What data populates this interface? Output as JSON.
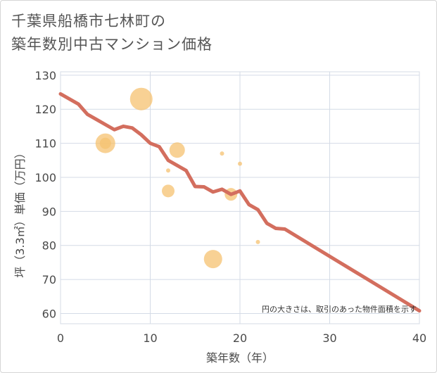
{
  "chart_data": {
    "type": "scatter",
    "title_line1": "千葉県船橋市七林町の",
    "title_line2": "築年数別中古マンション価格",
    "xlabel": "築年数（年）",
    "ylabel": "坪（3.3㎡）単価（万円）",
    "xlim": [
      0,
      40
    ],
    "ylim": [
      57,
      131
    ],
    "xticks": [
      0,
      10,
      20,
      30,
      40
    ],
    "yticks": [
      60,
      70,
      80,
      90,
      100,
      110,
      120,
      130
    ],
    "grid": true,
    "note": "円の大きさは、取引のあった物件面積を示す",
    "colors": {
      "bubble": "#f5c170",
      "line": "#d36e5e",
      "grid": "#d4dbe6"
    },
    "bubbles": [
      {
        "x": 9,
        "y": 123,
        "size": 16
      },
      {
        "x": 5,
        "y": 110,
        "size": 14
      },
      {
        "x": 5,
        "y": 110,
        "size": 8
      },
      {
        "x": 13,
        "y": 108,
        "size": 11
      },
      {
        "x": 18,
        "y": 107,
        "size": 3
      },
      {
        "x": 20,
        "y": 104,
        "size": 3
      },
      {
        "x": 12,
        "y": 102,
        "size": 3
      },
      {
        "x": 12,
        "y": 96,
        "size": 9
      },
      {
        "x": 19,
        "y": 95,
        "size": 9
      },
      {
        "x": 22,
        "y": 81,
        "size": 3
      },
      {
        "x": 17,
        "y": 76,
        "size": 13
      }
    ],
    "line": {
      "x": [
        0,
        2,
        3,
        4,
        5,
        6,
        7,
        8,
        9,
        10,
        11,
        12,
        13,
        14,
        15,
        16,
        17,
        18,
        19,
        20,
        21,
        22,
        23,
        24,
        25,
        26,
        27,
        28,
        29,
        30,
        31,
        32,
        33,
        34,
        35,
        36,
        37,
        38,
        39,
        40
      ],
      "y": [
        124.5,
        121.5,
        118.5,
        117,
        115.5,
        114,
        115,
        114.5,
        112.5,
        110,
        109,
        105,
        103.5,
        102,
        97.3,
        97.2,
        95.7,
        96.5,
        95,
        96,
        92,
        90.5,
        86.5,
        85,
        84.8,
        83.2,
        81.6,
        80,
        78.4,
        76.8,
        75.2,
        73.6,
        72,
        70.4,
        68.8,
        67.2,
        65.6,
        64,
        62.4,
        60.8
      ]
    }
  }
}
